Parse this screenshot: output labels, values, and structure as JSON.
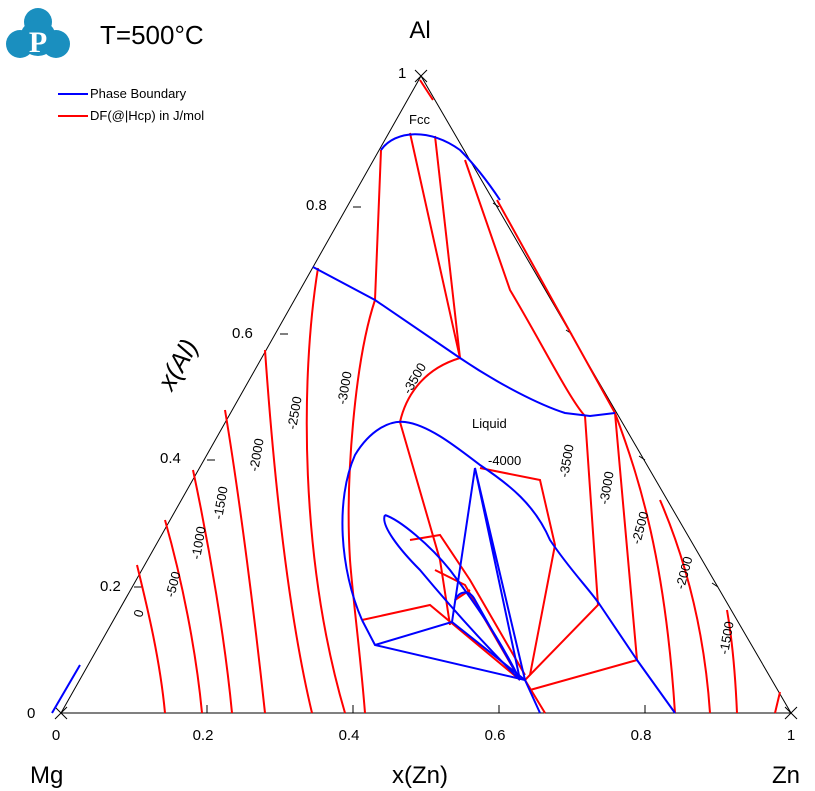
{
  "title": "T=500°C",
  "logo_letter": "P",
  "vertices": {
    "top": "Al",
    "left": "Mg",
    "right": "Zn"
  },
  "axis_labels": {
    "left_axis": "x(Al)",
    "bottom_axis": "x(Zn)"
  },
  "left_ticks": [
    "0",
    "0.2",
    "0.4",
    "0.6",
    "0.8",
    "1"
  ],
  "bottom_ticks": [
    "0",
    "0.2",
    "0.4",
    "0.6",
    "0.8",
    "1"
  ],
  "legend": [
    {
      "label": "Phase Boundary",
      "color": "#0000ff"
    },
    {
      "label": "DF(@|Hcp) in J/mol",
      "color": "#ff0000"
    }
  ],
  "phase_labels": {
    "fcc": "Fcc",
    "liquid": "Liquid"
  },
  "contour_labels": [
    "0",
    "-500",
    "-1000",
    "-1500",
    "-2000",
    "-2500",
    "-3000",
    "-3500",
    "-4000",
    "-3500",
    "-3000",
    "-2500",
    "-2000",
    "-1500"
  ]
}
